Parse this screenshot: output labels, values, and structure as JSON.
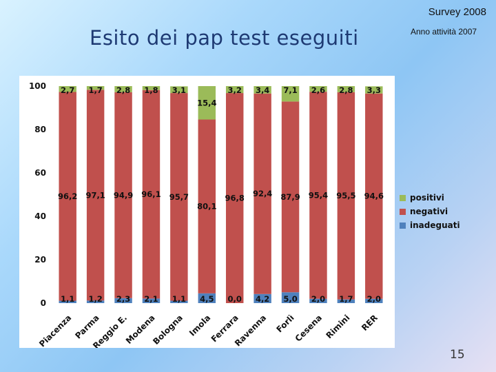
{
  "header": {
    "survey": "Survey 2008",
    "title": "Esito dei pap test eseguiti",
    "subtitle": "Anno attività 2007",
    "ylabel": "%"
  },
  "footer": {
    "page_number": "15"
  },
  "legend": {
    "items": [
      {
        "label": "positivi",
        "color": "#9bbb59"
      },
      {
        "label": "negativi",
        "color": "#c0504d"
      },
      {
        "label": "inadeguati",
        "color": "#4f81bd"
      }
    ]
  },
  "chart_data": {
    "type": "bar",
    "stacked": true,
    "categories": [
      "Piacenza",
      "Parma",
      "Reggio E.",
      "Modena",
      "Bologna",
      "Imola",
      "Ferrara",
      "Ravenna",
      "Forlì",
      "Cesena",
      "Rimini",
      "RER"
    ],
    "series": [
      {
        "name": "inadeguati",
        "color": "#4f81bd",
        "values": [
          1.1,
          1.2,
          2.3,
          2.1,
          1.1,
          4.5,
          0.0,
          4.2,
          5.0,
          2.0,
          1.7,
          2.0
        ],
        "labels": [
          "1,1",
          "1,2",
          "2,3",
          "2,1",
          "1,1",
          "4,5",
          "0,0",
          "4,2",
          "5,0",
          "2,0",
          "1,7",
          "2,0"
        ]
      },
      {
        "name": "negativi",
        "color": "#c0504d",
        "values": [
          96.2,
          97.1,
          94.9,
          96.1,
          95.7,
          80.1,
          96.8,
          92.4,
          87.9,
          95.4,
          95.5,
          94.6
        ],
        "labels": [
          "96,2",
          "97,1",
          "94,9",
          "96,1",
          "95,7",
          "80,1",
          "96,8",
          "92,4",
          "87,9",
          "95,4",
          "95,5",
          "94,6"
        ]
      },
      {
        "name": "positivi",
        "color": "#9bbb59",
        "values": [
          2.7,
          1.7,
          2.8,
          1.8,
          3.1,
          15.4,
          3.2,
          3.4,
          7.1,
          2.6,
          2.8,
          3.3
        ],
        "labels": [
          "2,7",
          "1,7",
          "2,8",
          "1,8",
          "3,1",
          "15,4",
          "3,2",
          "3,4",
          "7,1",
          "2,6",
          "2,8",
          "3,3"
        ]
      }
    ],
    "yticks": [
      "0",
      "20",
      "40",
      "60",
      "80",
      "100"
    ],
    "ylim": [
      0,
      100
    ],
    "ylabel": "%",
    "grid": false,
    "legend_position": "right"
  }
}
